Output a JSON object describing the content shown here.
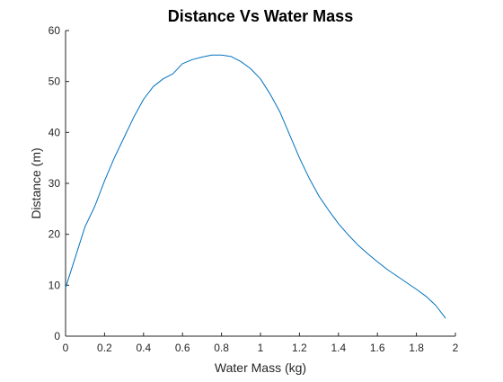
{
  "chart_data": {
    "type": "line",
    "title": "Distance Vs Water Mass",
    "xlabel": "Water Mass (kg)",
    "ylabel": "Distance (m)",
    "xlim": [
      0,
      2
    ],
    "ylim": [
      0,
      60
    ],
    "xticks": [
      0,
      0.2,
      0.4,
      0.6,
      0.8,
      1,
      1.2,
      1.4,
      1.6,
      1.8,
      2
    ],
    "xtick_labels": [
      "0",
      "0.2",
      "0.4",
      "0.6",
      "0.8",
      "1",
      "1.2",
      "1.4",
      "1.6",
      "1.8",
      "2"
    ],
    "yticks": [
      0,
      10,
      20,
      30,
      40,
      50,
      60
    ],
    "ytick_labels": [
      "0",
      "10",
      "20",
      "30",
      "40",
      "50",
      "60"
    ],
    "grid": false,
    "series": [
      {
        "color": "#0072BD",
        "x": [
          0,
          0.05,
          0.1,
          0.15,
          0.2,
          0.25,
          0.3,
          0.35,
          0.4,
          0.45,
          0.5,
          0.55,
          0.6,
          0.65,
          0.7,
          0.75,
          0.8,
          0.85,
          0.9,
          0.95,
          1.0,
          1.05,
          1.1,
          1.15,
          1.2,
          1.25,
          1.3,
          1.35,
          1.4,
          1.45,
          1.5,
          1.55,
          1.6,
          1.65,
          1.7,
          1.75,
          1.8,
          1.85,
          1.9,
          1.95
        ],
        "y": [
          9.5,
          15.5,
          21.5,
          25.5,
          30.5,
          35,
          39,
          43,
          46.5,
          49,
          50.5,
          51.5,
          53.5,
          54.3,
          54.8,
          55.2,
          55.2,
          54.9,
          53.9,
          52.5,
          50.5,
          47.5,
          44.0,
          39.5,
          35.0,
          31.0,
          27.5,
          24.7,
          22.1,
          19.9,
          17.9,
          16.2,
          14.6,
          13.1,
          11.8,
          10.5,
          9.2,
          7.8,
          6.0,
          3.5
        ]
      }
    ]
  }
}
